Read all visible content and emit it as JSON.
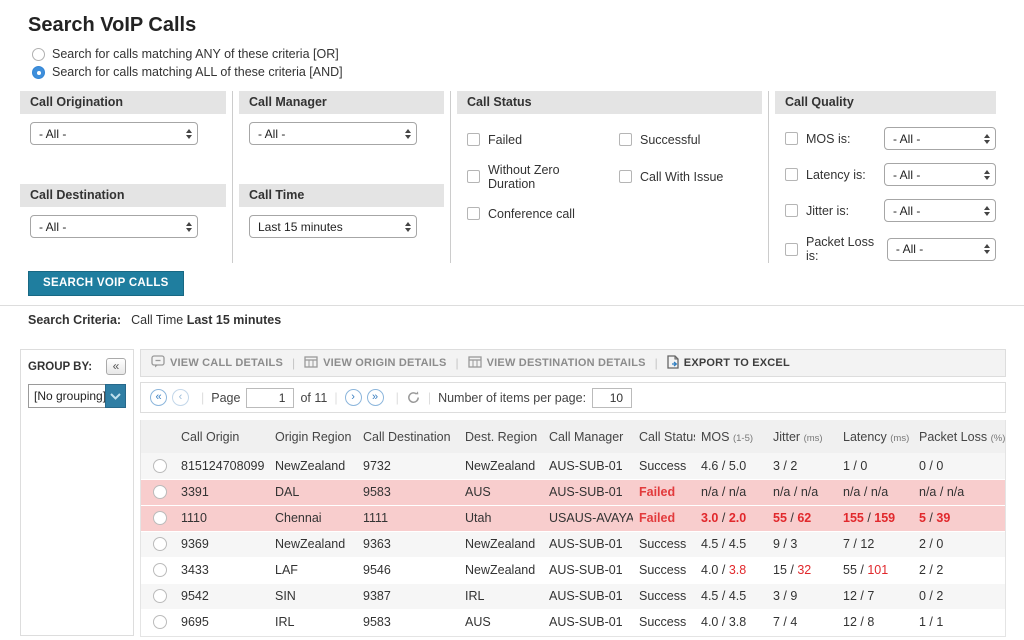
{
  "title": "Search VoIP Calls",
  "mode_options": [
    {
      "label": "Search for calls matching ANY of these criteria [OR]",
      "selected": false
    },
    {
      "label": "Search for calls matching ALL of these criteria [AND]",
      "selected": true
    }
  ],
  "filters": {
    "call_origination": {
      "title": "Call Origination",
      "value": "- All -"
    },
    "call_manager": {
      "title": "Call Manager",
      "value": "- All -"
    },
    "call_destination": {
      "title": "Call Destination",
      "value": "- All -"
    },
    "call_time": {
      "title": "Call Time",
      "value": "Last 15 minutes"
    },
    "call_status": {
      "title": "Call Status",
      "col1": [
        "Failed",
        "Without Zero Duration",
        "Conference call"
      ],
      "col2": [
        "Successful",
        "Call With Issue"
      ]
    },
    "call_quality": {
      "title": "Call Quality",
      "rows": [
        {
          "label": "MOS is:",
          "value": "- All -"
        },
        {
          "label": "Latency is:",
          "value": "- All -"
        },
        {
          "label": "Jitter is:",
          "value": "- All -"
        },
        {
          "label": "Packet Loss is:",
          "value": "- All -"
        }
      ]
    }
  },
  "search_button": "SEARCH VOIP CALLS",
  "criteria": {
    "label": "Search Criteria:",
    "field": "Call Time ",
    "value": "Last 15 minutes"
  },
  "sidebar": {
    "group_by_label": "GROUP BY:",
    "collapse_glyph": "«",
    "grouping_value": "[No grouping]"
  },
  "toolbar": {
    "items": [
      {
        "label": "VIEW CALL DETAILS",
        "icon": "chat-bubble-icon",
        "enabled": false
      },
      {
        "label": "VIEW ORIGIN DETAILS",
        "icon": "table-icon",
        "enabled": false
      },
      {
        "label": "VIEW DESTINATION DETAILS",
        "icon": "table-icon",
        "enabled": false
      },
      {
        "label": "EXPORT TO EXCEL",
        "icon": "export-document-icon",
        "enabled": true
      }
    ]
  },
  "pagination": {
    "first_glyph": "«",
    "prev_glyph": "‹",
    "next_glyph": "›",
    "last_glyph": "»",
    "page_label": "Page",
    "page_value": "1",
    "of_label": "of 11",
    "items_per_page_label": "Number of items per page:",
    "items_per_page_value": "10"
  },
  "table": {
    "headers": [
      {
        "label": "Call Origin"
      },
      {
        "label": "Origin Region"
      },
      {
        "label": "Call Destination"
      },
      {
        "label": "Dest. Region"
      },
      {
        "label": "Call Manager"
      },
      {
        "label": "Call Status"
      },
      {
        "label": "MOS",
        "unit": "(1-5)"
      },
      {
        "label": "Jitter",
        "unit": "(ms)"
      },
      {
        "label": "Latency",
        "unit": "(ms)"
      },
      {
        "label": "Packet Loss",
        "unit": "(%)"
      }
    ],
    "rows": [
      {
        "call_origin": "815124708099",
        "origin_region": "NewZealand",
        "call_destination": "9732",
        "dest_region": "NewZealand",
        "call_manager": "AUS-SUB-01",
        "call_status": "Success",
        "mos": {
          "v1": "4.6",
          "v2": "5.0",
          "r1": false,
          "r2": false
        },
        "jitter": {
          "v1": "3",
          "v2": "2",
          "r1": false,
          "r2": false
        },
        "latency": {
          "v1": "1",
          "v2": "0",
          "r1": false,
          "r2": false
        },
        "packet_loss": {
          "v1": "0",
          "v2": "0",
          "r1": false,
          "r2": false
        },
        "bg": "stripe",
        "metrics_bold": false
      },
      {
        "call_origin": "3391",
        "origin_region": "DAL",
        "call_destination": "9583",
        "dest_region": "AUS",
        "call_manager": "AUS-SUB-01",
        "call_status": "Failed",
        "mos": {
          "v1": "n/a",
          "v2": "n/a",
          "r1": false,
          "r2": false
        },
        "jitter": {
          "v1": "n/a",
          "v2": "n/a",
          "r1": false,
          "r2": false
        },
        "latency": {
          "v1": "n/a",
          "v2": "n/a",
          "r1": false,
          "r2": false
        },
        "packet_loss": {
          "v1": "n/a",
          "v2": "n/a",
          "r1": false,
          "r2": false
        },
        "bg": "pink",
        "metrics_bold": false
      },
      {
        "call_origin": "1110",
        "origin_region": "Chennai",
        "call_destination": "1111",
        "dest_region": "Utah",
        "call_manager": "USAUS-AVAYA",
        "call_status": "Failed",
        "mos": {
          "v1": "3.0",
          "v2": "2.0",
          "r1": true,
          "r2": true
        },
        "jitter": {
          "v1": "55",
          "v2": "62",
          "r1": true,
          "r2": true
        },
        "latency": {
          "v1": "155",
          "v2": "159",
          "r1": true,
          "r2": true
        },
        "packet_loss": {
          "v1": "5",
          "v2": "39",
          "r1": true,
          "r2": true
        },
        "bg": "pink",
        "metrics_bold": true
      },
      {
        "call_origin": "9369",
        "origin_region": "NewZealand",
        "call_destination": "9363",
        "dest_region": "NewZealand",
        "call_manager": "AUS-SUB-01",
        "call_status": "Success",
        "mos": {
          "v1": "4.5",
          "v2": "4.5",
          "r1": false,
          "r2": false
        },
        "jitter": {
          "v1": "9",
          "v2": "3",
          "r1": false,
          "r2": false
        },
        "latency": {
          "v1": "7",
          "v2": "12",
          "r1": false,
          "r2": false
        },
        "packet_loss": {
          "v1": "2",
          "v2": "0",
          "r1": false,
          "r2": false
        },
        "bg": "stripe",
        "metrics_bold": false
      },
      {
        "call_origin": "3433",
        "origin_region": "LAF",
        "call_destination": "9546",
        "dest_region": "NewZealand",
        "call_manager": "AUS-SUB-01",
        "call_status": "Success",
        "mos": {
          "v1": "4.0",
          "v2": "3.8",
          "r1": false,
          "r2": true
        },
        "jitter": {
          "v1": "15",
          "v2": "32",
          "r1": false,
          "r2": true
        },
        "latency": {
          "v1": "55",
          "v2": "101",
          "r1": false,
          "r2": true
        },
        "packet_loss": {
          "v1": "2",
          "v2": "2",
          "r1": false,
          "r2": false
        },
        "bg": "white",
        "metrics_bold": false
      },
      {
        "call_origin": "9542",
        "origin_region": "SIN",
        "call_destination": "9387",
        "dest_region": "IRL",
        "call_manager": "AUS-SUB-01",
        "call_status": "Success",
        "mos": {
          "v1": "4.5",
          "v2": "4.5",
          "r1": false,
          "r2": false
        },
        "jitter": {
          "v1": "3",
          "v2": "9",
          "r1": false,
          "r2": false
        },
        "latency": {
          "v1": "12",
          "v2": "7",
          "r1": false,
          "r2": false
        },
        "packet_loss": {
          "v1": "0",
          "v2": "2",
          "r1": false,
          "r2": false
        },
        "bg": "stripe",
        "metrics_bold": false
      },
      {
        "call_origin": "9695",
        "origin_region": "IRL",
        "call_destination": "9583",
        "dest_region": "AUS",
        "call_manager": "AUS-SUB-01",
        "call_status": "Success",
        "mos": {
          "v1": "4.0",
          "v2": "3.8",
          "r1": false,
          "r2": false
        },
        "jitter": {
          "v1": "7",
          "v2": "4",
          "r1": false,
          "r2": false
        },
        "latency": {
          "v1": "12",
          "v2": "8",
          "r1": false,
          "r2": false
        },
        "packet_loss": {
          "v1": "1",
          "v2": "1",
          "r1": false,
          "r2": false
        },
        "bg": "white",
        "metrics_bold": false
      }
    ]
  },
  "colors": {
    "accent_teal": "#1f7e9f",
    "failed_red": "#e23a3c",
    "alert_row_pink": "#f8cdcd",
    "link_blue": "#3a7fc1"
  }
}
